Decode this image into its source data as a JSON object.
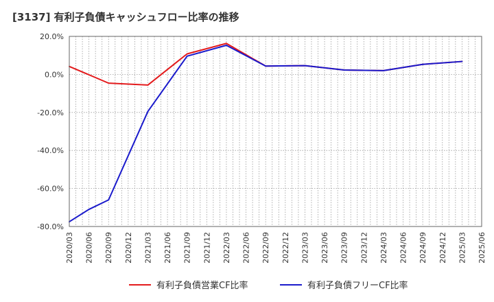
{
  "chart_data": {
    "type": "line",
    "title": "[3137]  有利子負債キャッシュフロー比率の推移",
    "xlabel": "",
    "ylabel": "",
    "ylim": [
      -80,
      20
    ],
    "yticks": [
      "20.0%",
      "0.0%",
      "-20.0%",
      "-40.0%",
      "-60.0%",
      "-80.0%"
    ],
    "ytick_values": [
      20,
      0,
      -20,
      -40,
      -60,
      -80
    ],
    "categories": [
      "2020/03",
      "2020/06",
      "2020/09",
      "2020/12",
      "2021/03",
      "2021/06",
      "2021/09",
      "2021/12",
      "2022/03",
      "2022/06",
      "2022/09",
      "2022/12",
      "2023/03",
      "2023/06",
      "2023/09",
      "2023/12",
      "2024/03",
      "2024/06",
      "2024/09",
      "2024/12",
      "2025/03",
      "2025/06"
    ],
    "grid": true,
    "legend_position": "bottom-center",
    "series": [
      {
        "name": "有利子負債営業CF比率",
        "color": "#e31a1c",
        "values": [
          4.2,
          null,
          -4.6,
          null,
          -5.6,
          null,
          10.8,
          null,
          16.3,
          null,
          4.4,
          null,
          4.6,
          null,
          2.3,
          null,
          2.0,
          null,
          5.3,
          null,
          6.8,
          null
        ]
      },
      {
        "name": "有利子負債フリーCF比率",
        "color": "#1a1acc",
        "values": [
          -77.5,
          -71.0,
          -66.0,
          null,
          -19.5,
          null,
          9.6,
          null,
          15.3,
          null,
          4.4,
          null,
          4.6,
          null,
          2.3,
          null,
          2.0,
          null,
          5.3,
          null,
          6.8,
          null
        ]
      }
    ]
  }
}
